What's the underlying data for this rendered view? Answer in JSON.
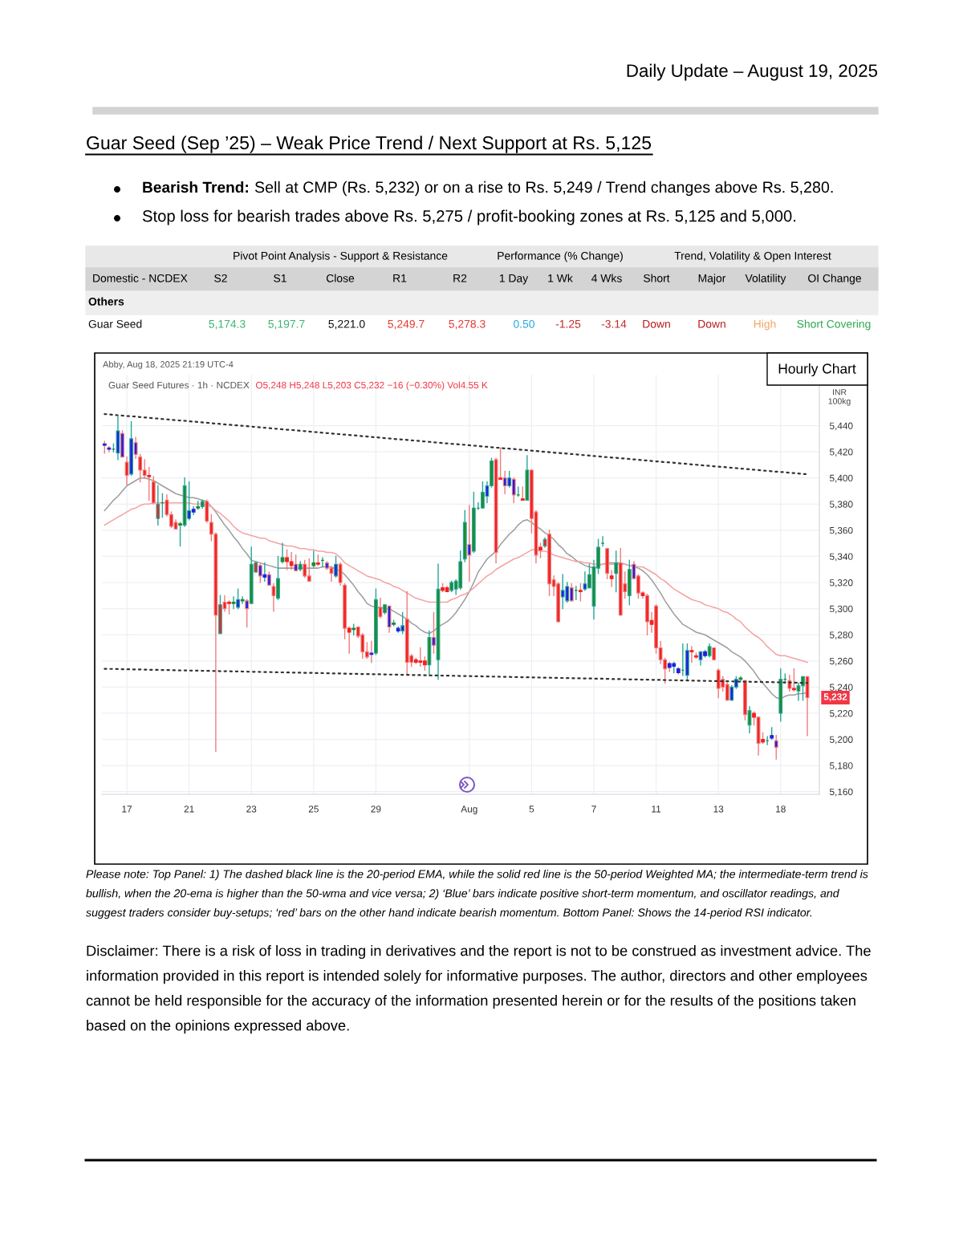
{
  "chart_data": {
    "type": "candlestick",
    "title": "Guar Seed (Sep ’25) – Weak Price Trend / Next Support at Rs. 5,125",
    "ylabel": "INR\n100kg",
    "annotations": [
      "Daily Update – August 19, 2025",
      "Bearish Trend:",
      "Sell at CMP (Rs. 5,232) or on a rise to Rs. 5,249 / Trend changes above Rs. 5,280.",
      "Stop loss for bearish trades above Rs. 5,275 / profit-booking zones at Rs. 5,125 and 5,000.",
      "Pivot Point Analysis - Support & Resistance",
      "Performance (% Change)",
      "Trend, Volatility & Open Interest",
      "Domestic - NCDEX",
      "S2",
      "S1",
      "Close",
      "R1",
      "R2",
      "1 Day",
      "1 Wk",
      "4 Wks",
      "Short",
      "Major",
      "Volatility",
      "OI Change",
      "Others",
      "Guar Seed",
      "5,174.3",
      "5,197.7",
      "5,221.0",
      "5,249.7",
      "5,278.3",
      "0.50",
      "-1.25",
      "-3.14",
      "Down",
      "Down",
      "High",
      "Short Covering",
      "Abby, Aug 18, 2025 21:19 UTC-4",
      "Guar Seed Futures · 1h · NCDEX",
      "O5,248 H5,248 L5,203 C5,232 −16 (−0.30%) Vol4.55 K",
      "Hourly Chart",
      "5,232",
      "Please note: Top Panel: 1) The dashed black line is the 20-period EMA, while the solid red line is the 50-period Weighted MA; the intermediate-term trend is bullish, when the 20-ema is higher than the 50-wma and vice versa; 2) ‘Blue’ bars indicate positive short-term momentum, and oscillator readings, and suggest traders consider buy-setups; ‘red’ bars on the other hand indicate bearish momentum. Bottom Panel: Shows the 14-period RSI indicator.",
      "Disclaimer: There is a risk of loss in trading in derivatives and the report is not to be construed as investment advice. The information provided in this report is intended solely for informative purposes. The author, directors and other employees cannot be held responsible for the accuracy of the information presented herein or for the results of the positions taken based on the opinions expressed above."
    ],
    "categories": [
      null,
      null,
      null,
      null,
      null,
      "17",
      null,
      null,
      null,
      null,
      null,
      null,
      null,
      null,
      null,
      null,
      null,
      null,
      null,
      "21",
      null,
      null,
      null,
      null,
      null,
      null,
      null,
      null,
      null,
      null,
      null,
      null,
      null,
      "23",
      null,
      null,
      null,
      null,
      null,
      null,
      null,
      null,
      null,
      null,
      null,
      null,
      null,
      "25",
      null,
      null,
      null,
      null,
      null,
      null,
      null,
      null,
      null,
      null,
      null,
      null,
      null,
      "29",
      null,
      null,
      null,
      null,
      null,
      null,
      null,
      null,
      null,
      null,
      null,
      null,
      null,
      null,
      null,
      null,
      null,
      null,
      null,
      null,
      "Aug",
      null,
      null,
      null,
      null,
      null,
      null,
      null,
      null,
      null,
      null,
      null,
      null,
      null,
      "5",
      null,
      null,
      null,
      null,
      null,
      null,
      null,
      null,
      null,
      null,
      null,
      null,
      null,
      "7",
      null,
      null,
      null,
      null,
      null,
      null,
      null,
      null,
      null,
      null,
      null,
      null,
      null,
      "11",
      null,
      null,
      null,
      null,
      null,
      null,
      null,
      null,
      null,
      null,
      null,
      null,
      null,
      "13",
      null,
      null,
      null,
      null,
      null,
      null,
      null,
      null,
      null,
      null,
      null,
      null,
      null,
      "18",
      null,
      null,
      null,
      null,
      null,
      null
    ],
    "ohlc": [
      [
        5426,
        5428,
        5419,
        5425
      ],
      [
        5423,
        5424,
        5420,
        5422
      ],
      [
        5422,
        5426,
        5420,
        5422
      ],
      [
        5419,
        5447,
        5414,
        5436
      ],
      [
        5434,
        5436,
        5416,
        5416
      ],
      [
        5412,
        5416,
        5395,
        5402
      ],
      [
        5403,
        5443,
        5402,
        5430
      ],
      [
        5427,
        5431,
        5415,
        5418
      ],
      [
        5416,
        5418,
        5397,
        5406
      ],
      [
        5406,
        5414,
        5400,
        5402
      ],
      [
        5402,
        5408,
        5383,
        5401
      ],
      [
        5397,
        5401,
        5380,
        5381
      ],
      [
        5369,
        5394,
        5364,
        5380
      ],
      [
        5381,
        5388,
        5370,
        5381
      ],
      [
        5383,
        5387,
        5371,
        5372
      ],
      [
        5372,
        5374,
        5362,
        5363
      ],
      [
        5366,
        5368,
        5361,
        5361
      ],
      [
        5364,
        5366,
        5348,
        5365
      ],
      [
        5364,
        5400,
        5363,
        5394
      ],
      [
        5369,
        5397,
        5368,
        5375
      ],
      [
        5374,
        5378,
        5372,
        5376
      ],
      [
        5377,
        5382,
        5376,
        5378
      ],
      [
        5378,
        5383,
        5377,
        5382
      ],
      [
        5382,
        5383,
        5366,
        5367
      ],
      [
        5366,
        5372,
        5352,
        5357
      ],
      [
        5357,
        5358,
        5191,
        5295
      ],
      [
        5281,
        5310,
        5281,
        5303
      ],
      [
        5305,
        5310,
        5298,
        5300
      ],
      [
        5305,
        5306,
        5296,
        5304
      ],
      [
        5304,
        5309,
        5300,
        5305
      ],
      [
        5301,
        5315,
        5300,
        5307
      ],
      [
        5306,
        5309,
        5304,
        5307
      ],
      [
        5306,
        5307,
        5286,
        5300
      ],
      [
        5304,
        5347,
        5304,
        5334
      ],
      [
        5328,
        5336,
        5328,
        5335
      ],
      [
        5333,
        5334,
        5320,
        5325
      ],
      [
        5324,
        5335,
        5321,
        5326
      ],
      [
        5326,
        5328,
        5318,
        5318
      ],
      [
        5317,
        5319,
        5298,
        5310
      ],
      [
        5308,
        5340,
        5307,
        5323
      ],
      [
        5336,
        5350,
        5335,
        5339
      ],
      [
        5339,
        5345,
        5330,
        5336
      ],
      [
        5336,
        5343,
        5330,
        5333
      ],
      [
        5334,
        5341,
        5329,
        5329
      ],
      [
        5330,
        5336,
        5329,
        5334
      ],
      [
        5334,
        5337,
        5324,
        5325
      ],
      [
        5325,
        5338,
        5321,
        5321
      ],
      [
        5333,
        5344,
        5332,
        5335
      ],
      [
        5335,
        5341,
        5333,
        5334
      ],
      [
        5337,
        5339,
        5332,
        5337
      ],
      [
        5335,
        5336,
        5330,
        5331
      ],
      [
        5331,
        5332,
        5321,
        5327
      ],
      [
        5325,
        5340,
        5324,
        5334
      ],
      [
        5334,
        5335,
        5318,
        5320
      ],
      [
        5318,
        5319,
        5277,
        5285
      ],
      [
        5285,
        5286,
        5266,
        5282
      ],
      [
        5284,
        5288,
        5280,
        5285
      ],
      [
        5286,
        5286,
        5278,
        5279
      ],
      [
        5280,
        5281,
        5262,
        5267
      ],
      [
        5267,
        5274,
        5262,
        5263
      ],
      [
        5266,
        5275,
        5259,
        5265
      ],
      [
        5266,
        5315,
        5265,
        5307
      ],
      [
        5301,
        5308,
        5293,
        5294
      ],
      [
        5297,
        5303,
        5296,
        5303
      ],
      [
        5302,
        5302,
        5282,
        5286
      ],
      [
        5288,
        5291,
        5287,
        5289
      ],
      [
        5283,
        5286,
        5282,
        5285
      ],
      [
        5283,
        5297,
        5281,
        5287
      ],
      [
        5292,
        5313,
        5250,
        5259
      ],
      [
        5264,
        5265,
        5256,
        5259
      ],
      [
        5261,
        5262,
        5258,
        5259
      ],
      [
        5260,
        5270,
        5256,
        5259
      ],
      [
        5260,
        5263,
        5253,
        5257
      ],
      [
        5257,
        5283,
        5249,
        5278
      ],
      [
        5278,
        5297,
        5266,
        5272
      ],
      [
        5261,
        5334,
        5246,
        5315
      ],
      [
        5316,
        5319,
        5313,
        5314
      ],
      [
        5316,
        5317,
        5313,
        5313
      ],
      [
        5314,
        5321,
        5313,
        5320
      ],
      [
        5315,
        5322,
        5311,
        5321
      ],
      [
        5316,
        5344,
        5315,
        5336
      ],
      [
        5338,
        5375,
        5336,
        5366
      ],
      [
        5349,
        5379,
        5321,
        5341
      ],
      [
        5344,
        5389,
        5343,
        5377
      ],
      [
        5377,
        5381,
        5376,
        5377
      ],
      [
        5377,
        5397,
        5377,
        5389
      ],
      [
        5386,
        5397,
        5381,
        5394
      ],
      [
        5394,
        5415,
        5393,
        5413
      ],
      [
        5414,
        5415,
        5335,
        5343
      ],
      [
        5400,
        5423,
        5399,
        5399
      ],
      [
        5400,
        5405,
        5388,
        5394
      ],
      [
        5394,
        5405,
        5393,
        5400
      ],
      [
        5399,
        5400,
        5381,
        5387
      ],
      [
        5387,
        5393,
        5386,
        5387
      ],
      [
        5384,
        5393,
        5383,
        5383
      ],
      [
        5383,
        5417,
        5383,
        5406
      ],
      [
        5406,
        5406,
        5358,
        5369
      ],
      [
        5374,
        5375,
        5335,
        5341
      ],
      [
        5347,
        5350,
        5339,
        5345
      ],
      [
        5348,
        5354,
        5347,
        5353
      ],
      [
        5357,
        5360,
        5310,
        5319
      ],
      [
        5322,
        5325,
        5310,
        5317
      ],
      [
        5319,
        5320,
        5290,
        5290
      ],
      [
        5309,
        5326,
        5300,
        5314
      ],
      [
        5306,
        5320,
        5305,
        5317
      ],
      [
        5316,
        5319,
        5306,
        5306
      ],
      [
        5314,
        5317,
        5307,
        5314
      ],
      [
        5314,
        5319,
        5306,
        5313
      ],
      [
        5315,
        5328,
        5314,
        5319
      ],
      [
        5316,
        5334,
        5316,
        5326
      ],
      [
        5302,
        5337,
        5292,
        5332
      ],
      [
        5331,
        5353,
        5327,
        5347
      ],
      [
        5350,
        5355,
        5348,
        5350
      ],
      [
        5346,
        5346,
        5323,
        5327
      ],
      [
        5325,
        5329,
        5317,
        5323
      ],
      [
        5327,
        5344,
        5313,
        5335
      ],
      [
        5335,
        5346,
        5295,
        5295
      ],
      [
        5319,
        5328,
        5308,
        5313
      ],
      [
        5310,
        5337,
        5303,
        5330
      ],
      [
        5334,
        5336,
        5323,
        5323
      ],
      [
        5325,
        5326,
        5308,
        5312
      ],
      [
        5312,
        5313,
        5308,
        5310
      ],
      [
        5310,
        5311,
        5280,
        5290
      ],
      [
        5291,
        5297,
        5282,
        5288
      ],
      [
        5302,
        5303,
        5266,
        5270
      ],
      [
        5270,
        5275,
        5258,
        5261
      ],
      [
        5261,
        5262,
        5243,
        5254
      ],
      [
        5258,
        5259,
        5252,
        5255
      ],
      [
        5256,
        5259,
        5251,
        5258
      ],
      [
        5254,
        5255,
        5250,
        5251
      ],
      [
        5253,
        5273,
        5249,
        5253
      ],
      [
        5249,
        5273,
        5246,
        5268
      ],
      [
        5268,
        5271,
        5259,
        5267
      ],
      [
        5264,
        5266,
        5262,
        5263
      ],
      [
        5261,
        5267,
        5257,
        5267
      ],
      [
        5264,
        5268,
        5263,
        5267
      ],
      [
        5264,
        5273,
        5263,
        5271
      ],
      [
        5270,
        5270,
        5261,
        5261
      ],
      [
        5253,
        5254,
        5232,
        5239
      ],
      [
        5246,
        5248,
        5237,
        5240
      ],
      [
        5242,
        5243,
        5230,
        5230
      ],
      [
        5230,
        5241,
        5230,
        5240
      ],
      [
        5240,
        5248,
        5239,
        5246
      ],
      [
        5246,
        5248,
        5244,
        5247
      ],
      [
        5245,
        5245,
        5215,
        5219
      ],
      [
        5211,
        5225,
        5205,
        5222
      ],
      [
        5220,
        5221,
        5211,
        5217
      ],
      [
        5217,
        5217,
        5188,
        5197
      ],
      [
        5200,
        5205,
        5197,
        5198
      ],
      [
        5199,
        5202,
        5196,
        5199
      ],
      [
        5201,
        5209,
        5200,
        5203
      ],
      [
        5199,
        5203,
        5185,
        5194
      ],
      [
        5220,
        5254,
        5214,
        5246
      ],
      [
        5246,
        5250,
        5243,
        5246
      ],
      [
        5245,
        5249,
        5237,
        5239
      ],
      [
        5239,
        5254,
        5237,
        5238
      ],
      [
        5237,
        5243,
        5230,
        5241
      ],
      [
        5241,
        5248,
        5230,
        5248
      ],
      [
        5248,
        5248,
        5203,
        5232
      ]
    ],
    "colors": [
      "#2020e0",
      "#2020e0",
      "#1e8a2e",
      "#2020e0",
      "#2020e0",
      "#f22222",
      "#2020e0",
      "#2020e0",
      "#f22222",
      "#f22222",
      "#f22222",
      "#f22222",
      "#f22222",
      "#1e8a2e",
      "#f22222",
      "#f22222",
      "#f22222",
      "#1e8a2e",
      "#1e8a2e",
      "#2020e0",
      "#2020e0",
      "#1e8a2e",
      "#1e8a2e",
      "#f22222",
      "#f22222",
      "#f22222",
      "#f22222",
      "#f22222",
      "#f22222",
      "#1e8a2e",
      "#2020e0",
      "#1e8a2e",
      "#2020e0",
      "#1e8a2e",
      "#f22222",
      "#2020e0",
      "#2020e0",
      "#2020e0",
      "#f22222",
      "#1e8a2e",
      "#1e8a2e",
      "#f22222",
      "#f22222",
      "#2020e0",
      "#1e8a2e",
      "#f22222",
      "#f22222",
      "#1e8a2e",
      "#f22222",
      "#1e8a2e",
      "#2020e0",
      "#f22222",
      "#2020e0",
      "#f22222",
      "#f22222",
      "#f22222",
      "#1e8a2e",
      "#f22222",
      "#f22222",
      "#f22222",
      "#2020e0",
      "#1e8a2e",
      "#f22222",
      "#1e8a2e",
      "#2020e0",
      "#1e8a2e",
      "#2020e0",
      "#2020e0",
      "#f22222",
      "#f22222",
      "#f22222",
      "#f22222",
      "#f22222",
      "#1e8a2e",
      "#2020e0",
      "#1e8a2e",
      "#f22222",
      "#f22222",
      "#1e8a2e",
      "#1e8a2e",
      "#1e8a2e",
      "#1e8a2e",
      "#2020e0",
      "#1e8a2e",
      "#1e8a2e",
      "#1e8a2e",
      "#2020e0",
      "#1e8a2e",
      "#f22222",
      "#f22222",
      "#2020e0",
      "#2020e0",
      "#2020e0",
      "#1e8a2e",
      "#f22222",
      "#1e8a2e",
      "#f22222",
      "#f22222",
      "#f22222",
      "#f22222",
      "#f22222",
      "#f22222",
      "#f22222",
      "#2020e0",
      "#2020e0",
      "#2020e0",
      "#1e8a2e",
      "#f22222",
      "#2020e0",
      "#1e8a2e",
      "#1e8a2e",
      "#1e8a2e",
      "#1e8a2e",
      "#f22222",
      "#f22222",
      "#1e8a2e",
      "#f22222",
      "#f22222",
      "#1e8a2e",
      "#2020e0",
      "#f22222",
      "#f22222",
      "#f22222",
      "#f22222",
      "#f22222",
      "#f22222",
      "#f22222",
      "#2020e0",
      "#2020e0",
      "#2020e0",
      "#1e8a2e",
      "#2020e0",
      "#f22222",
      "#f22222",
      "#2020e0",
      "#2020e0",
      "#1e8a2e",
      "#f22222",
      "#f22222",
      "#f22222",
      "#f22222",
      "#2020e0",
      "#2020e0",
      "#1e8a2e",
      "#f22222",
      "#1e8a2e",
      "#f22222",
      "#f22222",
      "#f22222",
      "#1e8a2e",
      "#2020e0",
      "#2020e0",
      "#1e8a2e",
      "#1e8a2e",
      "#f22222",
      "#f22222",
      "#1e8a2e",
      "#1e8a2e",
      "#f22222"
    ],
    "series": [
      {
        "type": "line",
        "color": "#9e9e9e",
        "line_style": "solid",
        "values": [
          5375,
          5379,
          5383,
          5386,
          5390,
          5394,
          5396,
          5398,
          5400,
          5400,
          5399,
          5398,
          5396,
          5394,
          5392,
          5390,
          5388,
          5387,
          5386,
          5385,
          5385,
          5384,
          5383,
          5382,
          5378,
          5374,
          5369,
          5364,
          5360,
          5355,
          5351,
          5346,
          5342,
          5337,
          5336,
          5335,
          5334,
          5333,
          5332,
          5331,
          5331,
          5331,
          5331,
          5331,
          5331,
          5331,
          5331,
          5331,
          5331,
          5332,
          5332,
          5332,
          5330,
          5329,
          5326,
          5322,
          5318,
          5313,
          5309,
          5304,
          5302,
          5301,
          5301,
          5300,
          5300,
          5298,
          5296,
          5294,
          5292,
          5289,
          5287,
          5284,
          5282,
          5281,
          5283,
          5286,
          5288,
          5290,
          5293,
          5297,
          5302,
          5307,
          5313,
          5320,
          5328,
          5333,
          5338,
          5341,
          5344,
          5349,
          5353,
          5357,
          5360,
          5364,
          5367,
          5368,
          5366,
          5363,
          5361,
          5358,
          5356,
          5353,
          5349,
          5346,
          5342,
          5340,
          5337,
          5335,
          5333,
          5332,
          5331,
          5333,
          5334,
          5335,
          5335,
          5335,
          5335,
          5334,
          5333,
          5332,
          5331,
          5329,
          5326,
          5322,
          5317,
          5312,
          5306,
          5301,
          5296,
          5292,
          5288,
          5286,
          5284,
          5282,
          5281,
          5280,
          5278,
          5276,
          5274,
          5272,
          5270,
          5267,
          5265,
          5263,
          5260,
          5256,
          5252,
          5247,
          5243,
          5239,
          5235,
          5232,
          5231,
          5233,
          5234,
          5234,
          5235,
          5235,
          5236
        ]
      },
      {
        "type": "line",
        "color": "#f4a3a3",
        "line_style": "solid",
        "values": [
          5364,
          5366,
          5368,
          5370,
          5372,
          5374,
          5376,
          5377,
          5379,
          5380,
          5380,
          5381,
          5381,
          5381,
          5381,
          5381,
          5381,
          5381,
          5381,
          5381,
          5380,
          5380,
          5380,
          5379,
          5378,
          5375,
          5373,
          5370,
          5367,
          5363,
          5360,
          5358,
          5357,
          5356,
          5355,
          5354,
          5354,
          5352,
          5351,
          5350,
          5349,
          5348,
          5348,
          5347,
          5346,
          5346,
          5345,
          5345,
          5344,
          5344,
          5343,
          5343,
          5342,
          5339,
          5335,
          5333,
          5331,
          5329,
          5327,
          5325,
          5324,
          5323,
          5322,
          5320,
          5319,
          5317,
          5316,
          5314,
          5312,
          5310,
          5308,
          5307,
          5306,
          5305,
          5305,
          5305,
          5305,
          5305,
          5307,
          5308,
          5310,
          5311,
          5313,
          5316,
          5319,
          5322,
          5325,
          5327,
          5330,
          5332,
          5334,
          5336,
          5338,
          5339,
          5341,
          5343,
          5345,
          5345,
          5344,
          5344,
          5343,
          5341,
          5340,
          5339,
          5338,
          5337,
          5336,
          5336,
          5335,
          5335,
          5334,
          5334,
          5334,
          5334,
          5334,
          5334,
          5334,
          5334,
          5333,
          5333,
          5332,
          5332,
          5330,
          5328,
          5326,
          5323,
          5321,
          5318,
          5315,
          5313,
          5311,
          5309,
          5307,
          5306,
          5305,
          5303,
          5302,
          5301,
          5300,
          5298,
          5297,
          5295,
          5292,
          5290,
          5286,
          5283,
          5280,
          5278,
          5275,
          5271,
          5268,
          5265,
          5264,
          5264,
          5263,
          5262,
          5261,
          5260,
          5259
        ]
      },
      {
        "type": "line",
        "color": "#333333",
        "line_style": "dotted",
        "values": [
          5448.9,
          5448.6,
          5448.3,
          5448.0,
          5447.7,
          5447.4,
          5447.2,
          5446.9,
          5446.6,
          5446.3,
          5446.0,
          5445.7,
          5445.4,
          5445.1,
          5444.8,
          5444.5,
          5444.2,
          5443.9,
          5443.7,
          5443.4,
          5443.1,
          5442.8,
          5442.5,
          5442.2,
          5441.9,
          5441.6,
          5441.3,
          5441.0,
          5440.7,
          5440.4,
          5440.2,
          5439.9,
          5439.6,
          5439.3,
          5439.0,
          5438.7,
          5438.4,
          5438.1,
          5437.8,
          5437.5,
          5437.2,
          5436.9,
          5436.7,
          5436.4,
          5436.1,
          5435.8,
          5435.5,
          5435.2,
          5434.9,
          5434.6,
          5434.3,
          5434.0,
          5433.7,
          5433.4,
          5433.2,
          5432.9,
          5432.6,
          5432.3,
          5432.0,
          5431.7,
          5431.4,
          5431.1,
          5430.8,
          5430.5,
          5430.2,
          5429.9,
          5429.6,
          5429.4,
          5429.1,
          5428.8,
          5428.5,
          5428.2,
          5427.9,
          5427.6,
          5427.3,
          5427.0,
          5426.7,
          5426.4,
          5426.1,
          5425.9,
          5425.6,
          5425.3,
          5425.0,
          5424.7,
          5424.4,
          5424.1,
          5423.8,
          5423.5,
          5423.2,
          5422.9,
          5422.6,
          5422.4,
          5422.1,
          5421.8,
          5421.5,
          5421.2,
          5420.9,
          5420.6,
          5420.3,
          5420.0,
          5419.7,
          5419.4,
          5419.1,
          5418.9,
          5418.6,
          5418.3,
          5418.0,
          5417.7,
          5417.4,
          5417.1,
          5416.8,
          5416.5,
          5416.2,
          5415.9,
          5415.6,
          5415.4,
          5415.1,
          5414.8,
          5414.5,
          5414.2,
          5413.9,
          5413.6,
          5413.3,
          5413.0,
          5412.7,
          5412.4,
          5412.1,
          5411.9,
          5411.6,
          5411.3,
          5411.0,
          5410.7,
          5410.4,
          5410.1,
          5409.8,
          5409.5,
          5409.2,
          5408.9,
          5408.6,
          5408.4,
          5408.1,
          5407.8,
          5407.5,
          5407.2,
          5406.9,
          5406.6,
          5406.3,
          5406.0,
          5405.7,
          5405.4,
          5405.1,
          5404.8,
          5404.6,
          5404.3,
          5404.0,
          5403.7,
          5403.4,
          5403.1,
          5402.8
        ]
      },
      {
        "type": "line",
        "color": "#333333",
        "line_style": "dotted",
        "values": [
          5254.0,
          5253.9,
          5253.9,
          5253.8,
          5253.7,
          5253.7,
          5253.6,
          5253.5,
          5253.5,
          5253.4,
          5253.3,
          5253.2,
          5253.2,
          5253.1,
          5253.0,
          5253.0,
          5252.9,
          5252.8,
          5252.8,
          5252.7,
          5252.6,
          5252.6,
          5252.5,
          5252.4,
          5252.4,
          5252.3,
          5252.2,
          5252.2,
          5252.1,
          5252.0,
          5252.0,
          5251.9,
          5251.8,
          5251.7,
          5251.7,
          5251.6,
          5251.5,
          5251.5,
          5251.4,
          5251.3,
          5251.3,
          5251.2,
          5251.1,
          5251.1,
          5251.0,
          5250.9,
          5250.9,
          5250.8,
          5250.7,
          5250.7,
          5250.6,
          5250.5,
          5250.4,
          5250.4,
          5250.3,
          5250.2,
          5250.2,
          5250.1,
          5250.0,
          5250.0,
          5249.9,
          5249.8,
          5249.8,
          5249.7,
          5249.6,
          5249.6,
          5249.5,
          5249.4,
          5249.4,
          5249.3,
          5249.2,
          5249.2,
          5249.1,
          5249.0,
          5248.9,
          5248.9,
          5248.8,
          5248.7,
          5248.7,
          5248.6,
          5248.5,
          5248.5,
          5248.4,
          5248.3,
          5248.3,
          5248.2,
          5248.1,
          5248.1,
          5248.0,
          5247.9,
          5247.9,
          5247.8,
          5247.7,
          5247.6,
          5247.6,
          5247.5,
          5247.4,
          5247.4,
          5247.3,
          5247.2,
          5247.2,
          5247.1,
          5247.0,
          5247.0,
          5246.9,
          5246.8,
          5246.8,
          5246.7,
          5246.6,
          5246.6,
          5246.5,
          5246.4,
          5246.4,
          5246.3,
          5246.2,
          5246.1,
          5246.1,
          5246.0,
          5245.9,
          5245.9,
          5245.8,
          5245.7,
          5245.7,
          5245.6,
          5245.5,
          5245.5,
          5245.4,
          5245.3,
          5245.3,
          5245.2,
          5245.1,
          5245.1,
          5245.0,
          5244.9,
          5244.8,
          5244.8,
          5244.7,
          5244.6,
          5244.6,
          5244.5,
          5244.4,
          5244.4,
          5244.3,
          5244.2,
          5244.2,
          5244.1,
          5244.0,
          5244.0,
          5243.9,
          5243.8,
          5243.8,
          5243.7,
          5243.6,
          5243.6,
          5243.5,
          5243.4,
          5243.3,
          5243.3,
          5243.2
        ]
      }
    ],
    "ylim": [
      5158,
      5479
    ],
    "yticks": [
      {
        "value": 5160,
        "label": "5,160"
      },
      {
        "value": 5180,
        "label": "5,180"
      },
      {
        "value": 5200,
        "label": "5,200"
      },
      {
        "value": 5220,
        "label": "5,220"
      },
      {
        "value": 5240,
        "label": "5,240"
      },
      {
        "value": 5260,
        "label": "5,260"
      },
      {
        "value": 5280,
        "label": "5,280"
      },
      {
        "value": 5300,
        "label": "5,300"
      },
      {
        "value": 5320,
        "label": "5,320"
      },
      {
        "value": 5340,
        "label": "5,340"
      },
      {
        "value": 5360,
        "label": "5,360"
      },
      {
        "value": 5380,
        "label": "5,380"
      },
      {
        "value": 5400,
        "label": "5,400"
      },
      {
        "value": 5420,
        "label": "5,420"
      },
      {
        "value": 5440,
        "label": "5,440"
      }
    ],
    "grid": true
  }
}
